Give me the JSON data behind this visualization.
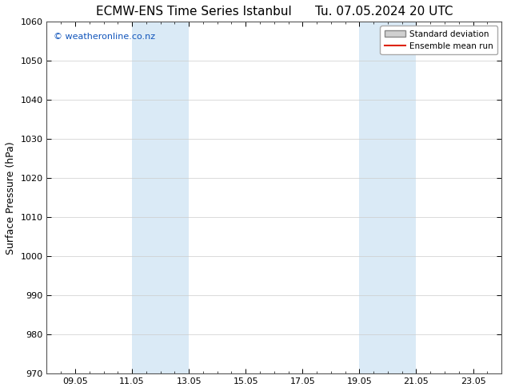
{
  "title": "ECMW-ENS Time Series Istanbul      Tu. 07.05.2024 20 UTC",
  "ylabel": "Surface Pressure (hPa)",
  "ylim": [
    970,
    1060
  ],
  "yticks": [
    970,
    980,
    990,
    1000,
    1010,
    1020,
    1030,
    1040,
    1050,
    1060
  ],
  "x_min": 0,
  "x_max": 16,
  "xtick_labels": [
    "09.05",
    "11.05",
    "13.05",
    "15.05",
    "17.05",
    "19.05",
    "21.05",
    "23.05"
  ],
  "xtick_positions": [
    1,
    3,
    5,
    7,
    9,
    11,
    13,
    15
  ],
  "shaded_bands": [
    {
      "x_start": 3,
      "x_end": 5
    },
    {
      "x_start": 11,
      "x_end": 13
    }
  ],
  "shaded_color": "#daeaf6",
  "watermark_text": "© weatheronline.co.nz",
  "watermark_color": "#1155bb",
  "legend_std_label": "Standard deviation",
  "legend_mean_label": "Ensemble mean run",
  "legend_std_facecolor": "#d0d0d0",
  "legend_std_edgecolor": "#888888",
  "legend_mean_color": "#dd2200",
  "bg_color": "#ffffff",
  "title_fontsize": 11,
  "ylabel_fontsize": 9,
  "tick_fontsize": 8,
  "watermark_fontsize": 8
}
